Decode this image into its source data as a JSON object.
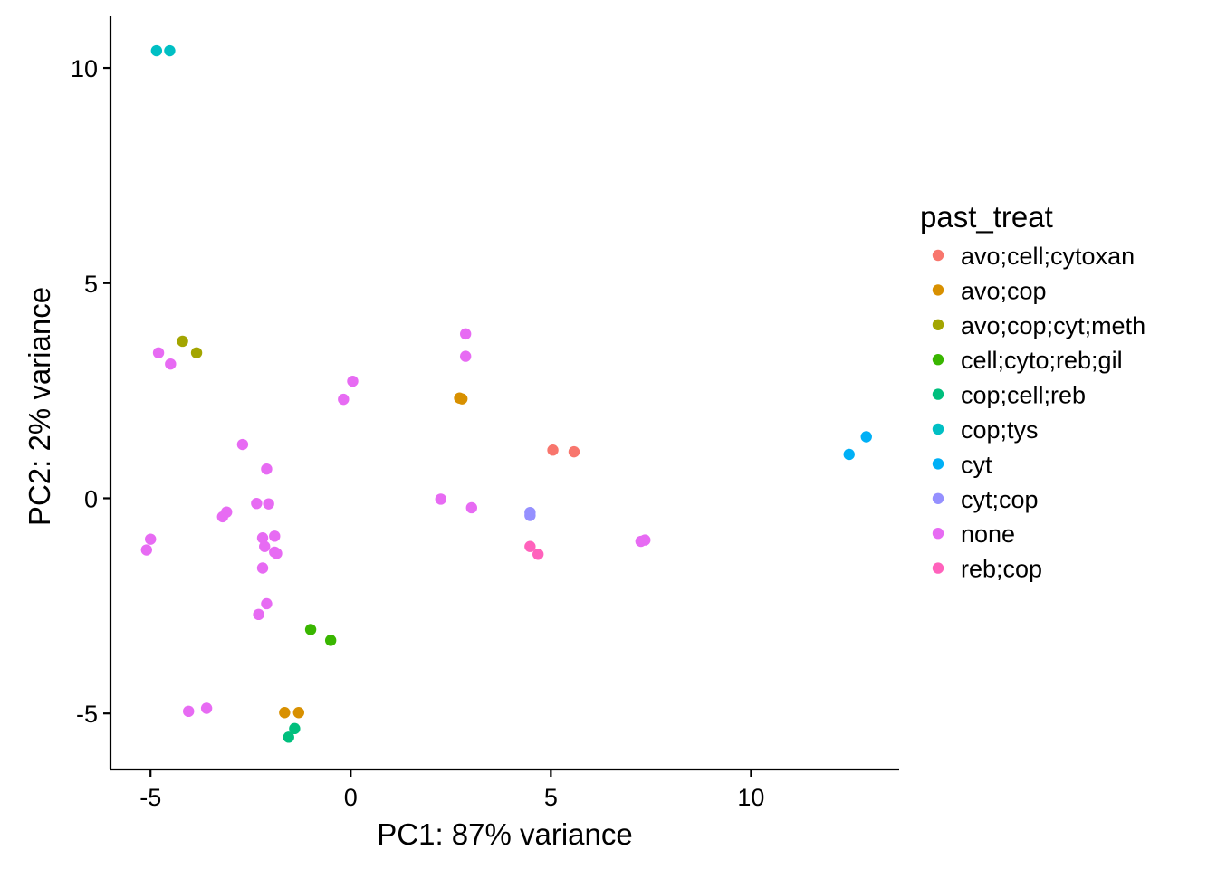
{
  "chart_data": {
    "type": "scatter",
    "title": "",
    "xlabel": "PC1: 87% variance",
    "ylabel": "PC2: 2% variance",
    "xlim": [
      -6.0,
      13.7
    ],
    "ylim": [
      -6.3,
      11.2
    ],
    "x_ticks": [
      -5,
      0,
      5,
      10
    ],
    "y_ticks": [
      -5,
      0,
      5,
      10
    ],
    "x_tick_labels": [
      "-5",
      "0",
      "5",
      "10"
    ],
    "y_tick_labels": [
      "-5",
      "0",
      "5",
      "10"
    ],
    "grid": false,
    "legend_title": "past_treat",
    "legend_position": "right",
    "series": [
      {
        "name": "avo;cell;cytoxan",
        "color": "#F8766D",
        "points": [
          [
            5.05,
            1.12
          ],
          [
            5.58,
            1.08
          ]
        ]
      },
      {
        "name": "avo;cop",
        "color": "#D89000",
        "points": [
          [
            2.72,
            2.33
          ],
          [
            2.78,
            2.31
          ],
          [
            -1.65,
            -4.98
          ],
          [
            -1.3,
            -4.98
          ]
        ]
      },
      {
        "name": "avo;cop;cyt;meth",
        "color": "#A3A500",
        "points": [
          [
            -4.2,
            3.65
          ],
          [
            -3.85,
            3.38
          ]
        ]
      },
      {
        "name": "cell;cyto;reb;gil",
        "color": "#39B600",
        "points": [
          [
            -1.0,
            -3.05
          ],
          [
            -0.5,
            -3.3
          ]
        ]
      },
      {
        "name": "cop;cell;reb",
        "color": "#00BF7D",
        "points": [
          [
            -1.4,
            -5.35
          ],
          [
            -1.55,
            -5.55
          ]
        ]
      },
      {
        "name": "cop;tys",
        "color": "#00BFC4",
        "points": [
          [
            -4.85,
            10.4
          ],
          [
            -4.52,
            10.4
          ]
        ]
      },
      {
        "name": "cyt",
        "color": "#00B0F6",
        "points": [
          [
            12.45,
            1.02
          ],
          [
            12.88,
            1.43
          ]
        ]
      },
      {
        "name": "cyt;cop",
        "color": "#9590FF",
        "points": [
          [
            4.48,
            -0.33
          ],
          [
            4.48,
            -0.4
          ]
        ]
      },
      {
        "name": "none",
        "color": "#E76BF3",
        "points": [
          [
            -4.8,
            3.38
          ],
          [
            -4.5,
            3.12
          ],
          [
            -0.18,
            2.3
          ],
          [
            0.05,
            2.72
          ],
          [
            2.87,
            3.82
          ],
          [
            2.87,
            3.3
          ],
          [
            -2.7,
            1.25
          ],
          [
            -2.1,
            0.68
          ],
          [
            -2.35,
            -0.12
          ],
          [
            -2.05,
            -0.13
          ],
          [
            -3.1,
            -0.32
          ],
          [
            -3.2,
            -0.43
          ],
          [
            -2.2,
            -0.92
          ],
          [
            -1.9,
            -0.88
          ],
          [
            -2.15,
            -1.12
          ],
          [
            -1.9,
            -1.25
          ],
          [
            -1.85,
            -1.28
          ],
          [
            -5.0,
            -0.95
          ],
          [
            -5.1,
            -1.2
          ],
          [
            -2.2,
            -1.62
          ],
          [
            -2.1,
            -2.45
          ],
          [
            -2.3,
            -2.7
          ],
          [
            -4.05,
            -4.95
          ],
          [
            -3.6,
            -4.88
          ],
          [
            2.25,
            -0.02
          ],
          [
            3.02,
            -0.22
          ],
          [
            7.25,
            -1.0
          ],
          [
            7.35,
            -0.97
          ]
        ]
      },
      {
        "name": "reb;cop",
        "color": "#FF62BC",
        "points": [
          [
            4.48,
            -1.12
          ],
          [
            4.68,
            -1.3
          ]
        ]
      }
    ]
  }
}
